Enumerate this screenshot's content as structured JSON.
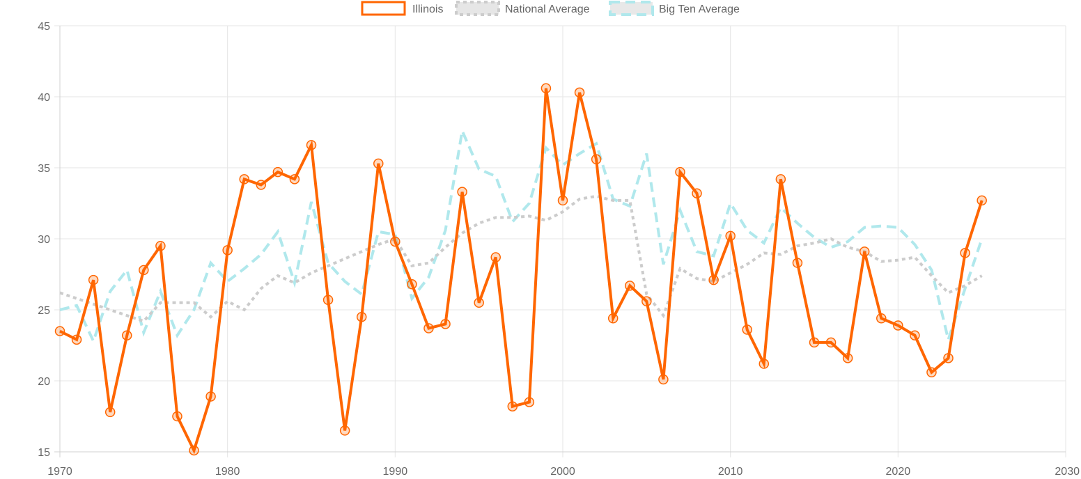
{
  "chart_data": {
    "type": "line",
    "title": "",
    "xlabel": "",
    "ylabel": "",
    "xlim": [
      1970,
      2030
    ],
    "ylim": [
      15,
      45
    ],
    "x_ticks": [
      1970,
      1980,
      1990,
      2000,
      2010,
      2020,
      2030
    ],
    "y_ticks": [
      15,
      20,
      25,
      30,
      35,
      40,
      45
    ],
    "grid": true,
    "legend_position": "top",
    "x": [
      1970,
      1971,
      1972,
      1973,
      1974,
      1975,
      1976,
      1977,
      1978,
      1979,
      1980,
      1981,
      1982,
      1983,
      1984,
      1985,
      1986,
      1987,
      1988,
      1989,
      1990,
      1991,
      1992,
      1993,
      1994,
      1995,
      1996,
      1997,
      1998,
      1999,
      2000,
      2001,
      2002,
      2003,
      2004,
      2005,
      2006,
      2007,
      2008,
      2009,
      2010,
      2011,
      2012,
      2013,
      2014,
      2015,
      2016,
      2017,
      2018,
      2019,
      2020,
      2021,
      2022,
      2023,
      2024,
      2025
    ],
    "series": [
      {
        "name": "Illinois",
        "color": "#ff6600",
        "style": "solid",
        "values": [
          23.5,
          22.9,
          27.1,
          17.8,
          23.2,
          27.8,
          29.5,
          17.5,
          15.1,
          18.9,
          29.2,
          34.2,
          33.8,
          34.7,
          34.2,
          36.6,
          25.7,
          16.5,
          24.5,
          35.3,
          29.8,
          26.8,
          23.7,
          24.0,
          33.3,
          25.5,
          28.7,
          18.2,
          18.5,
          40.6,
          32.7,
          40.3,
          35.6,
          24.4,
          26.7,
          25.6,
          20.1,
          34.7,
          33.2,
          27.1,
          30.2,
          23.6,
          21.2,
          34.2,
          28.3,
          22.7,
          22.7,
          21.6,
          29.1,
          24.4,
          23.9,
          23.2,
          20.6,
          21.6,
          29.0,
          32.7
        ]
      },
      {
        "name": "National Average",
        "color": "#cccccc",
        "style": "dotted",
        "values": [
          26.2,
          25.8,
          25.4,
          25.0,
          24.6,
          24.2,
          25.5,
          25.5,
          25.5,
          24.5,
          25.6,
          25.0,
          26.5,
          27.4,
          26.9,
          27.6,
          28.1,
          28.6,
          29.1,
          29.6,
          30.0,
          28.1,
          28.3,
          29.4,
          30.4,
          31.1,
          31.5,
          31.5,
          31.6,
          31.3,
          31.9,
          32.8,
          33.0,
          32.7,
          32.7,
          26.1,
          24.6,
          27.9,
          27.2,
          27.0,
          27.6,
          28.2,
          29.0,
          28.9,
          29.5,
          29.7,
          30.0,
          29.4,
          29.1,
          28.4,
          28.5,
          28.7,
          27.4,
          26.2,
          26.7,
          27.4
        ]
      },
      {
        "name": "Big Ten Average",
        "color": "#b0e8ec",
        "style": "dashed",
        "values": [
          25.0,
          25.3,
          22.8,
          26.3,
          27.8,
          23.4,
          26.3,
          23.2,
          25.0,
          28.3,
          27.0,
          27.9,
          28.9,
          30.5,
          26.9,
          32.6,
          28.3,
          27.0,
          26.1,
          30.5,
          30.3,
          25.8,
          27.3,
          30.6,
          37.6,
          34.9,
          34.4,
          31.2,
          32.5,
          36.4,
          35.2,
          36.0,
          36.7,
          32.8,
          32.3,
          36.0,
          28.2,
          32.0,
          29.1,
          28.8,
          32.5,
          30.6,
          29.7,
          32.2,
          31.1,
          30.1,
          29.4,
          29.8,
          30.8,
          30.9,
          30.8,
          29.6,
          27.8,
          22.9,
          26.5,
          30.0
        ]
      }
    ]
  }
}
